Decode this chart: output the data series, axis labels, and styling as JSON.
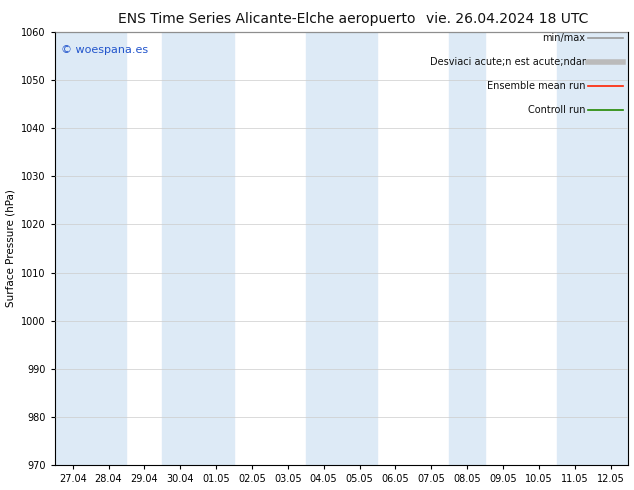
{
  "title": "ENS Time Series Alicante-Elche aeropuerto",
  "title2": "vie. 26.04.2024 18 UTC",
  "ylabel": "Surface Pressure (hPa)",
  "ylim": [
    970,
    1060
  ],
  "yticks": [
    970,
    980,
    990,
    1000,
    1010,
    1020,
    1030,
    1040,
    1050,
    1060
  ],
  "x_labels": [
    "27.04",
    "28.04",
    "29.04",
    "30.04",
    "01.05",
    "02.05",
    "03.05",
    "04.05",
    "05.05",
    "06.05",
    "07.05",
    "08.05",
    "09.05",
    "10.05",
    "11.05",
    "12.05"
  ],
  "shaded_indices": [
    0,
    1,
    3,
    4,
    7,
    8,
    11,
    14,
    15
  ],
  "background_color": "#ffffff",
  "shaded_color": "#ddeaf6",
  "legend_labels": [
    "min/max",
    "Desviaci acute;n est acute;ndar",
    "Ensemble mean run",
    "Controll run"
  ],
  "legend_colors": [
    "#999999",
    "#bbbbbb",
    "#ff2200",
    "#228800"
  ],
  "legend_lws": [
    1.2,
    4.0,
    1.2,
    1.2
  ],
  "watermark": "© woespana.es",
  "watermark_color": "#2255cc",
  "title_fontsize": 10,
  "axis_fontsize": 7.5,
  "tick_fontsize": 7,
  "legend_fontsize": 7
}
